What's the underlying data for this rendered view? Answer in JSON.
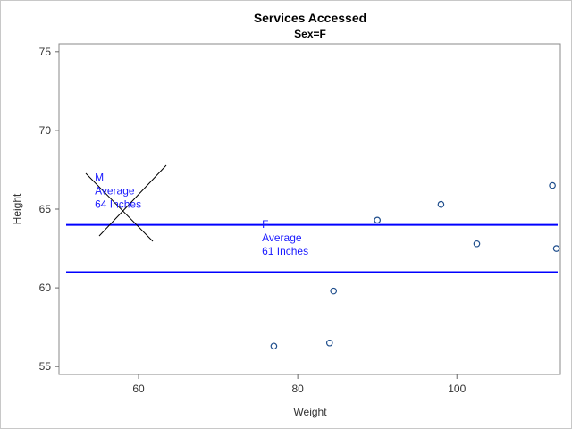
{
  "chart_data": {
    "type": "scatter",
    "title": "Services Accessed",
    "subtitle": "Sex=F",
    "xlabel": "Weight",
    "ylabel": "Height",
    "xlim": [
      50,
      113
    ],
    "ylim": [
      54.5,
      75.5
    ],
    "x_ticks": [
      60,
      80,
      100
    ],
    "y_ticks": [
      55,
      60,
      65,
      70,
      75
    ],
    "grid": false,
    "points": [
      {
        "x": 77.0,
        "y": 56.3
      },
      {
        "x": 84.0,
        "y": 56.5
      },
      {
        "x": 84.5,
        "y": 59.8
      },
      {
        "x": 90.0,
        "y": 64.3
      },
      {
        "x": 98.0,
        "y": 65.3
      },
      {
        "x": 102.5,
        "y": 62.8
      },
      {
        "x": 112.0,
        "y": 66.5
      },
      {
        "x": 112.5,
        "y": 62.5
      }
    ],
    "reference_lines": [
      {
        "y": 64
      },
      {
        "y": 61
      }
    ],
    "annotations": [
      {
        "lines": [
          "M",
          "Average",
          "64 Inches"
        ],
        "x": 54.5,
        "y": 66.8
      },
      {
        "lines": [
          "F",
          "Average",
          "61 Inches"
        ],
        "x": 75.5,
        "y": 63.8
      }
    ],
    "colors": {
      "marker": "#1f4e8c",
      "reference_line": "#0000ff",
      "annotation_text": "#1a1aff",
      "cross_mark": "#000000"
    }
  }
}
